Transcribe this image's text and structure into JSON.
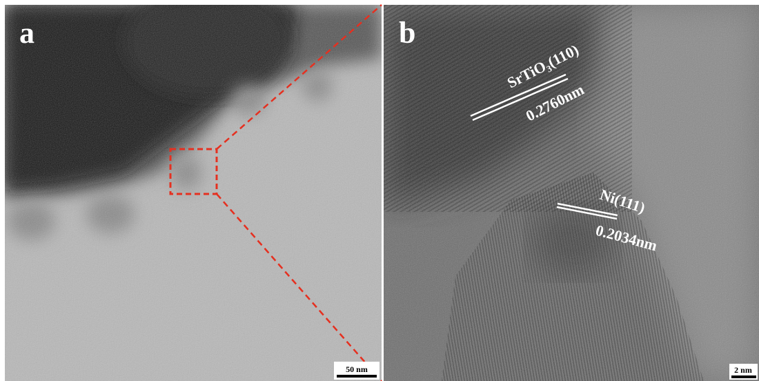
{
  "panels": [
    {
      "letter": "a",
      "scale_bar": "50 nm"
    },
    {
      "letter": "b",
      "scale_bar": "2 nm",
      "annotations": [
        {
          "plane": "SrTiO₃(110)",
          "spacing": "0.2760nm"
        },
        {
          "plane": "Ni(111)",
          "spacing": "0.2034nm"
        }
      ]
    }
  ]
}
